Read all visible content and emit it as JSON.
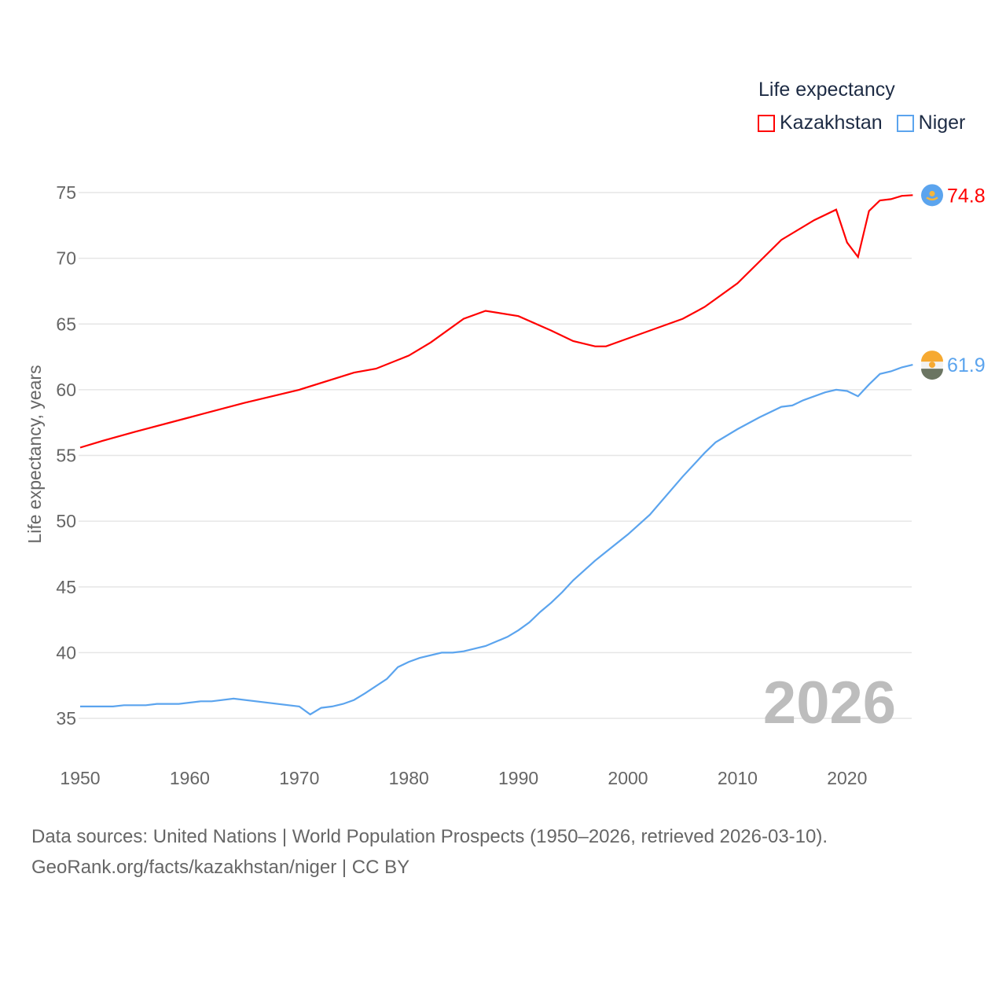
{
  "chart_data": {
    "type": "line",
    "ylabel": "Life expectancy, years",
    "xlabel": "",
    "xlim": [
      1950,
      2026
    ],
    "ylim": [
      32.5,
      76
    ],
    "yticks": [
      35,
      40,
      45,
      50,
      55,
      60,
      65,
      70,
      75
    ],
    "xticks": [
      1950,
      1960,
      1970,
      1980,
      1990,
      2000,
      2010,
      2020
    ],
    "grid": true,
    "legend_title": "Life expectancy",
    "legend_position": "top-right",
    "year_label": "2026",
    "series": [
      {
        "name": "Kazakhstan",
        "color": "#ff0000",
        "end_label": "74.8",
        "x": [
          1950,
          1952,
          1955,
          1960,
          1965,
          1970,
          1975,
          1977,
          1980,
          1982,
          1985,
          1987,
          1990,
          1993,
          1995,
          1997,
          1998,
          2000,
          2003,
          2005,
          2007,
          2010,
          2014,
          2017,
          2019,
          2020,
          2021,
          2022,
          2023,
          2024,
          2025,
          2026
        ],
        "values": [
          55.6,
          56.1,
          56.8,
          57.9,
          59.0,
          60.0,
          61.3,
          61.6,
          62.6,
          63.6,
          65.4,
          66.0,
          65.6,
          64.5,
          63.7,
          63.3,
          63.3,
          63.9,
          64.8,
          65.4,
          66.3,
          68.1,
          71.4,
          72.9,
          73.7,
          71.2,
          70.1,
          73.6,
          74.4,
          74.5,
          74.75,
          74.8
        ]
      },
      {
        "name": "Niger",
        "color": "#5ba4ee",
        "end_label": "61.9",
        "x": [
          1950,
          1953,
          1954,
          1956,
          1957,
          1959,
          1961,
          1962,
          1964,
          1970,
          1971,
          1972,
          1973,
          1974,
          1975,
          1976,
          1978,
          1979,
          1980,
          1981,
          1983,
          1984,
          1985,
          1987,
          1989,
          1990,
          1991,
          1992,
          1993,
          1994,
          1995,
          1997,
          2000,
          2002,
          2005,
          2007,
          2008,
          2010,
          2012,
          2014,
          2015,
          2016,
          2018,
          2019,
          2020,
          2021,
          2022,
          2023,
          2024,
          2025,
          2026
        ],
        "values": [
          35.9,
          35.9,
          36.0,
          36.0,
          36.1,
          36.1,
          36.3,
          36.3,
          36.5,
          35.9,
          35.3,
          35.8,
          35.9,
          36.1,
          36.4,
          36.9,
          38.0,
          38.9,
          39.3,
          39.6,
          40.0,
          40.0,
          40.1,
          40.5,
          41.2,
          41.7,
          42.3,
          43.1,
          43.8,
          44.6,
          45.5,
          47.0,
          49.0,
          50.5,
          53.4,
          55.2,
          56.0,
          57.0,
          57.9,
          58.7,
          58.8,
          59.2,
          59.8,
          60.0,
          59.9,
          59.5,
          60.4,
          61.2,
          61.4,
          61.7,
          61.9
        ]
      }
    ]
  },
  "footer": {
    "line1": "Data sources: United Nations | World Population Prospects (1950–2026, retrieved 2026-03-10).",
    "line2": "GeoRank.org/facts/kazakhstan/niger | CC BY"
  }
}
